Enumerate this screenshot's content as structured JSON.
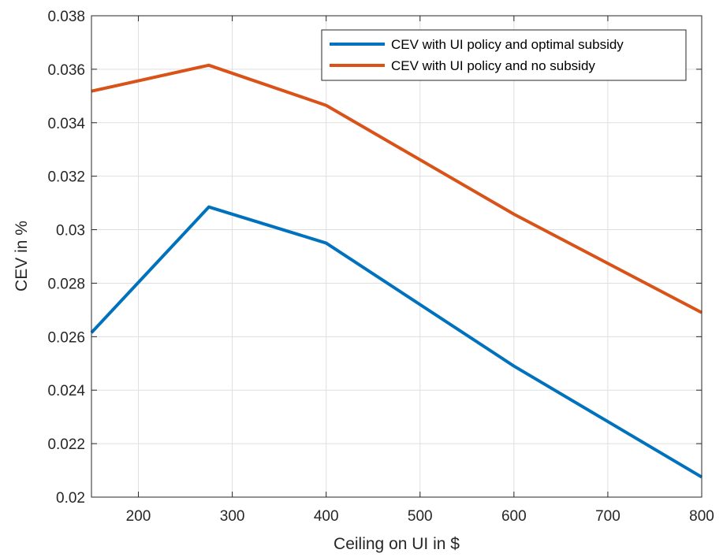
{
  "chart_data": {
    "type": "line",
    "title": "",
    "xlabel": "Ceiling on UI in $",
    "ylabel": "CEV in %",
    "xlim": [
      150,
      800
    ],
    "ylim": [
      0.02,
      0.038
    ],
    "xticks": [
      200,
      300,
      400,
      500,
      600,
      700,
      800
    ],
    "xtick_labels": [
      "200",
      "300",
      "400",
      "500",
      "600",
      "700",
      "800"
    ],
    "yticks": [
      0.02,
      0.022,
      0.024,
      0.026,
      0.028,
      0.03,
      0.032,
      0.034,
      0.036,
      0.038
    ],
    "ytick_labels": [
      "0.02",
      "0.022",
      "0.024",
      "0.026",
      "0.028",
      "0.03",
      "0.032",
      "0.034",
      "0.036",
      "0.038"
    ],
    "grid": true,
    "legend_position": "top-right",
    "series": [
      {
        "name": "CEV with UI policy and optimal subsidy",
        "color": "#0072bd",
        "x": [
          150,
          275,
          400,
          600,
          800
        ],
        "y": [
          0.02615,
          0.03085,
          0.0295,
          0.0249,
          0.02075
        ]
      },
      {
        "name": "CEV with UI policy and no subsidy",
        "color": "#d95319",
        "x": [
          150,
          275,
          400,
          600,
          800
        ],
        "y": [
          0.03518,
          0.03615,
          0.03465,
          0.03058,
          0.0269
        ]
      }
    ]
  }
}
